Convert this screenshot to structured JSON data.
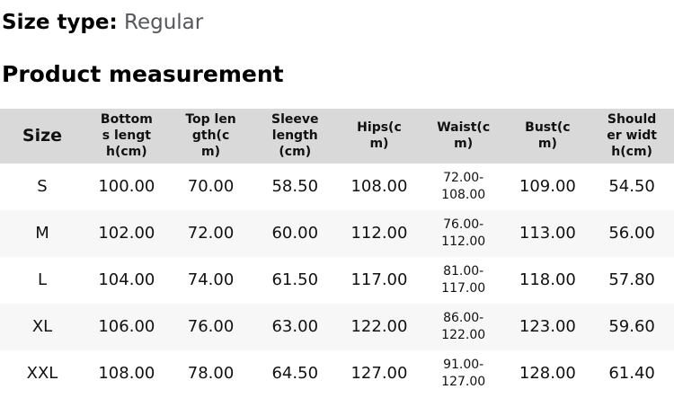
{
  "size_type": {
    "label": "Size type:",
    "value": "Regular"
  },
  "section_title": "Product measurement",
  "table": {
    "columns": [
      "Size",
      "Bottoms length(cm)",
      "Top length(cm)",
      "Sleeve length(cm)",
      "Hips(cm)",
      "Waist(cm)",
      "Bust(cm)",
      "Shoulder width(cm)"
    ],
    "rows": [
      [
        "S",
        "100.00",
        "70.00",
        "58.50",
        "108.00",
        "72.00-108.00",
        "109.00",
        "54.50"
      ],
      [
        "M",
        "102.00",
        "72.00",
        "60.00",
        "112.00",
        "76.00-112.00",
        "113.00",
        "56.00"
      ],
      [
        "L",
        "104.00",
        "74.00",
        "61.50",
        "117.00",
        "81.00-117.00",
        "118.00",
        "57.80"
      ],
      [
        "XL",
        "106.00",
        "76.00",
        "63.00",
        "122.00",
        "86.00-122.00",
        "123.00",
        "59.60"
      ],
      [
        "XXL",
        "108.00",
        "78.00",
        "64.50",
        "127.00",
        "91.00-127.00",
        "128.00",
        "61.40"
      ]
    ]
  },
  "colors": {
    "header_bg": "#d9d9d9",
    "stripe_bg": "#f7f7f7",
    "muted_text": "#55575a",
    "text": "#000000"
  }
}
